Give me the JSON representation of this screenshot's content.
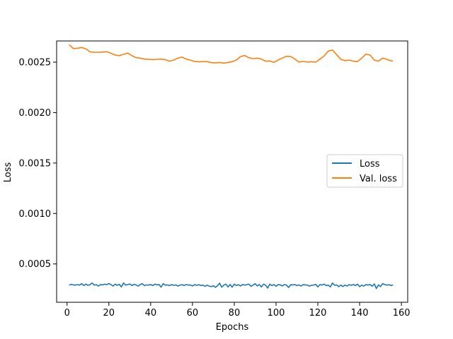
{
  "chart_data": {
    "type": "line",
    "title": "",
    "xlabel": "Epochs",
    "ylabel": "Loss",
    "xlim": [
      -5,
      163
    ],
    "ylim": [
      0.00012,
      0.00271
    ],
    "xticks": [
      0,
      20,
      40,
      60,
      80,
      100,
      120,
      140,
      160
    ],
    "xtick_labels": [
      "0",
      "20",
      "40",
      "60",
      "80",
      "100",
      "120",
      "140",
      "160"
    ],
    "yticks": [
      0.0005,
      0.001,
      0.0015,
      0.002,
      0.0025
    ],
    "ytick_labels": [
      "0.0005",
      "0.0010",
      "0.0015",
      "0.0020",
      "0.0025"
    ],
    "grid": false,
    "legend_position": "center-right",
    "series": [
      {
        "name": "Loss",
        "color": "#1f77b4",
        "x": [
          1,
          2,
          3,
          4,
          5,
          6,
          7,
          8,
          9,
          10,
          11,
          12,
          13,
          14,
          15,
          16,
          17,
          18,
          19,
          20,
          21,
          22,
          23,
          24,
          25,
          26,
          27,
          28,
          29,
          30,
          31,
          32,
          33,
          34,
          35,
          36,
          37,
          38,
          39,
          40,
          41,
          42,
          43,
          44,
          45,
          46,
          47,
          48,
          49,
          50,
          51,
          52,
          53,
          54,
          55,
          56,
          57,
          58,
          59,
          60,
          61,
          62,
          63,
          64,
          65,
          66,
          67,
          68,
          69,
          70,
          71,
          72,
          73,
          74,
          75,
          76,
          77,
          78,
          79,
          80,
          81,
          82,
          83,
          84,
          85,
          86,
          87,
          88,
          89,
          90,
          91,
          92,
          93,
          94,
          95,
          96,
          97,
          98,
          99,
          100,
          101,
          102,
          103,
          104,
          105,
          106,
          107,
          108,
          109,
          110,
          111,
          112,
          113,
          114,
          115,
          116,
          117,
          118,
          119,
          120,
          121,
          122,
          123,
          124,
          125,
          126,
          127,
          128,
          129,
          130,
          131,
          132,
          133,
          134,
          135,
          136,
          137,
          138,
          139,
          140,
          141,
          142,
          143,
          144,
          145,
          146,
          147,
          148,
          149,
          150,
          151,
          152,
          153,
          154,
          155,
          156
        ],
        "y": [
          0.00029,
          0.000298,
          0.000292,
          0.00029,
          0.000295,
          0.00029,
          0.000305,
          0.000285,
          0.0003,
          0.000288,
          0.000295,
          0.000312,
          0.00029,
          0.000295,
          0.00028,
          0.000296,
          0.000292,
          0.0003,
          0.000294,
          0.000306,
          0.000295,
          0.00028,
          0.0003,
          0.000288,
          0.000298,
          0.000272,
          0.000312,
          0.00029,
          0.000295,
          0.000302,
          0.000285,
          0.000298,
          0.000292,
          0.00028,
          0.000296,
          0.000305,
          0.000285,
          0.000292,
          0.00029,
          0.000296,
          0.000286,
          0.0003,
          0.000292,
          0.000296,
          0.00027,
          0.000305,
          0.00029,
          0.000292,
          0.000285,
          0.000295,
          0.000288,
          0.000292,
          0.00028,
          0.00029,
          0.000294,
          0.000286,
          0.000296,
          0.00029,
          0.000292,
          0.000282,
          0.000295,
          0.000288,
          0.000294,
          0.000286,
          0.00029,
          0.000278,
          0.00029,
          0.00028,
          0.000275,
          0.000284,
          0.000268,
          0.000284,
          0.00031,
          0.00027,
          0.00029,
          0.0003,
          0.000272,
          0.000296,
          0.00027,
          0.0003,
          0.000286,
          0.000294,
          0.000282,
          0.000296,
          0.00029,
          0.000295,
          0.0003,
          0.000278,
          0.00029,
          0.000305,
          0.000282,
          0.000296,
          0.000272,
          0.0003,
          0.00029,
          0.00026,
          0.0003,
          0.000285,
          0.000296,
          0.000278,
          0.000296,
          0.000292,
          0.000282,
          0.000296,
          0.00029,
          0.000266,
          0.000294,
          0.000292,
          0.000296,
          0.000285,
          0.000292,
          0.00028,
          0.000296,
          0.000292,
          0.00029,
          0.00028,
          0.000288,
          0.00029,
          0.000298,
          0.000272,
          0.000296,
          0.00029,
          0.0003,
          0.000285,
          0.00029,
          0.000272,
          0.000312,
          0.000288,
          0.000292,
          0.000275,
          0.00029,
          0.000276,
          0.00029,
          0.000282,
          0.000295,
          0.000288,
          0.000296,
          0.000286,
          0.0003,
          0.000275,
          0.00029,
          0.00028,
          0.000296,
          0.00029,
          0.000296,
          0.000278,
          0.000302,
          0.000256,
          0.000292,
          0.000276,
          0.000305,
          0.000296,
          0.00029,
          0.000294,
          0.000286,
          0.000292
        ],
        "note": "values approximate"
      },
      {
        "name": "Val. loss",
        "color": "#ff7f0e",
        "x": [
          1,
          3,
          5,
          7,
          9,
          11,
          13,
          15,
          17,
          19,
          21,
          23,
          25,
          27,
          29,
          31,
          33,
          35,
          37,
          39,
          41,
          43,
          45,
          47,
          49,
          51,
          53,
          55,
          57,
          59,
          61,
          63,
          65,
          67,
          69,
          71,
          73,
          75,
          77,
          79,
          81,
          83,
          85,
          87,
          89,
          91,
          93,
          95,
          97,
          99,
          101,
          103,
          105,
          107,
          109,
          111,
          113,
          115,
          117,
          119,
          121,
          123,
          125,
          127,
          129,
          131,
          133,
          135,
          137,
          139,
          141,
          143,
          145,
          147,
          149,
          151,
          153,
          155,
          156
        ],
        "y": [
          0.002672,
          0.002635,
          0.002638,
          0.002645,
          0.002632,
          0.002602,
          0.002598,
          0.002598,
          0.0026,
          0.002603,
          0.002588,
          0.00257,
          0.002565,
          0.002578,
          0.00259,
          0.002565,
          0.002545,
          0.00254,
          0.00253,
          0.002528,
          0.002525,
          0.002528,
          0.00253,
          0.002525,
          0.00251,
          0.00252,
          0.00254,
          0.00255,
          0.00253,
          0.00252,
          0.002508,
          0.002503,
          0.002505,
          0.002505,
          0.002495,
          0.002492,
          0.002497,
          0.00249,
          0.002497,
          0.002505,
          0.00252,
          0.002555,
          0.002565,
          0.002545,
          0.002535,
          0.00254,
          0.00253,
          0.00251,
          0.002512,
          0.002497,
          0.002522,
          0.00254,
          0.002558,
          0.002555,
          0.00253,
          0.0025,
          0.002508,
          0.0025,
          0.002504,
          0.0025,
          0.00253,
          0.00256,
          0.00261,
          0.00262,
          0.002575,
          0.002528,
          0.002515,
          0.00252,
          0.00251,
          0.002505,
          0.00254,
          0.00258,
          0.00257,
          0.00252,
          0.00251,
          0.00254,
          0.002528,
          0.002512,
          0.002512
        ],
        "note": "values approximate"
      }
    ]
  }
}
